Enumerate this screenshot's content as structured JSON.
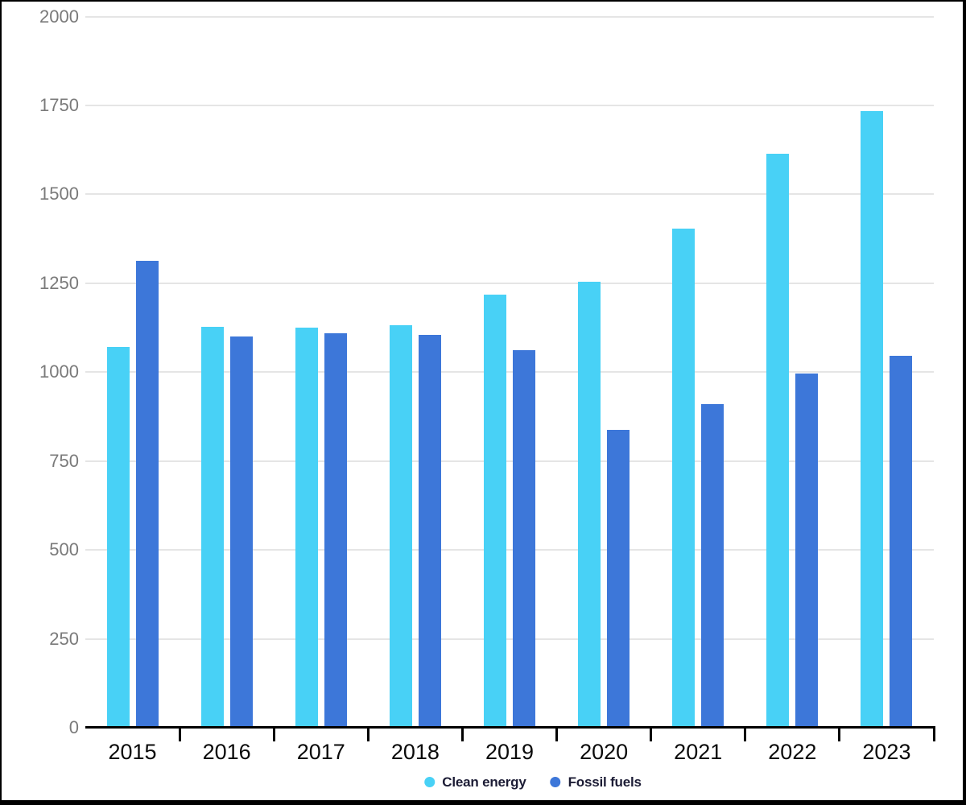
{
  "chart_data": {
    "type": "bar",
    "categories": [
      "2015",
      "2016",
      "2017",
      "2018",
      "2019",
      "2020",
      "2021",
      "2022",
      "2023"
    ],
    "series": [
      {
        "name": "Clean energy",
        "color": "#48d1f6",
        "values": [
          1070,
          1128,
          1124,
          1132,
          1218,
          1255,
          1403,
          1615,
          1735
        ]
      },
      {
        "name": "Fossil fuels",
        "color": "#3d77d9",
        "values": [
          1313,
          1101,
          1109,
          1104,
          1062,
          838,
          910,
          995,
          1045
        ]
      }
    ],
    "ylim": [
      0,
      2000
    ],
    "ytick_interval": 250,
    "yticks": [
      "0",
      "250",
      "500",
      "750",
      "1000",
      "1250",
      "1500",
      "1750",
      "2000"
    ],
    "xlabel": "",
    "ylabel": "",
    "title": "",
    "grid": true,
    "legend_position": "bottom"
  },
  "legend": {
    "items": [
      {
        "label": "Clean energy",
        "color": "#48d1f6"
      },
      {
        "label": "Fossil fuels",
        "color": "#3d77d9"
      }
    ]
  },
  "colors": {
    "clean_energy": "#48d1f6",
    "fossil_fuels": "#3d77d9",
    "axis_line": "#000000",
    "gridline": "#e5e5e5",
    "y_label_text": "#7a7a7a",
    "x_label_text": "#0a0a0a",
    "legend_text": "#1c1c35"
  }
}
